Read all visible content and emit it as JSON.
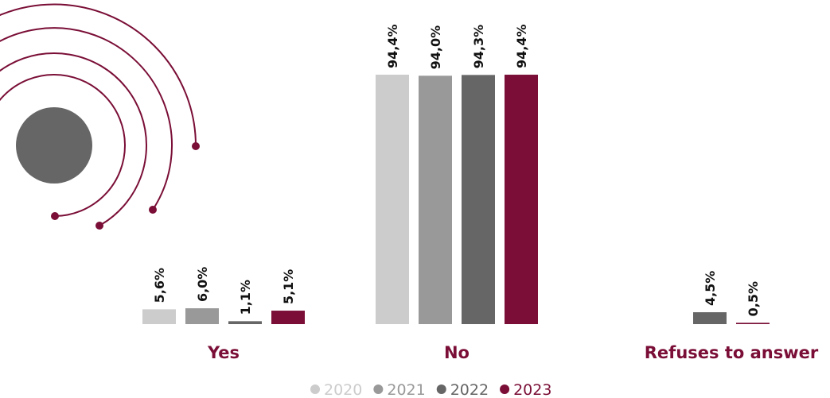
{
  "chart_data": {
    "type": "bar",
    "categories": [
      "Yes",
      "No",
      "Refuses to answer"
    ],
    "series": [
      {
        "name": "2020",
        "color": "#cccccc",
        "values": [
          5.6,
          94.4,
          null
        ],
        "value_labels": [
          "5,6%",
          "94,4%",
          null
        ]
      },
      {
        "name": "2021",
        "color": "#999999",
        "values": [
          6.0,
          94.0,
          null
        ],
        "value_labels": [
          "6,0%",
          "94,0%",
          null
        ]
      },
      {
        "name": "2022",
        "color": "#666666",
        "values": [
          1.1,
          94.3,
          4.5
        ],
        "value_labels": [
          "1,1%",
          "94,3%",
          "4,5%"
        ]
      },
      {
        "name": "2023",
        "color": "#7a0e36",
        "values": [
          5.1,
          94.4,
          0.5
        ],
        "value_labels": [
          "5,1%",
          "94,4%",
          "0,5%"
        ]
      }
    ]
  }
}
